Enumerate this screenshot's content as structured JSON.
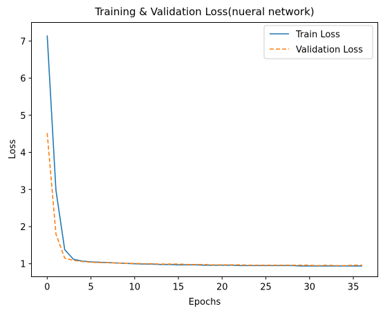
{
  "chart_data": {
    "type": "line",
    "title": "Training & Validation Loss(nueral network)",
    "xlabel": "Epochs",
    "ylabel": "Loss",
    "xlim": [
      -1.8,
      37.8
    ],
    "ylim": [
      0.65,
      7.5
    ],
    "xticks": [
      0,
      5,
      10,
      15,
      20,
      25,
      30,
      35
    ],
    "yticks": [
      1,
      2,
      3,
      4,
      5,
      6,
      7
    ],
    "grid": false,
    "legend_position": "top-right",
    "x": [
      0,
      1,
      2,
      3,
      4,
      5,
      6,
      7,
      8,
      9,
      10,
      11,
      12,
      13,
      14,
      15,
      16,
      17,
      18,
      19,
      20,
      21,
      22,
      23,
      24,
      25,
      26,
      27,
      28,
      29,
      30,
      31,
      32,
      33,
      34,
      35,
      36
    ],
    "series": [
      {
        "name": "Train Loss",
        "color": "#1f77b4",
        "dash": "solid",
        "values": [
          7.15,
          2.98,
          1.38,
          1.12,
          1.07,
          1.05,
          1.04,
          1.03,
          1.02,
          1.01,
          1.0,
          0.99,
          0.99,
          0.98,
          0.98,
          0.97,
          0.97,
          0.97,
          0.96,
          0.96,
          0.96,
          0.96,
          0.95,
          0.95,
          0.95,
          0.95,
          0.95,
          0.95,
          0.95,
          0.94,
          0.94,
          0.94,
          0.94,
          0.94,
          0.94,
          0.94,
          0.94
        ]
      },
      {
        "name": "Validation Loss",
        "color": "#ff7f0e",
        "dash": "dashed",
        "values": [
          4.52,
          1.8,
          1.15,
          1.09,
          1.06,
          1.04,
          1.03,
          1.03,
          1.02,
          1.01,
          1.01,
          1.0,
          1.0,
          0.99,
          0.99,
          0.99,
          0.98,
          0.98,
          0.98,
          0.97,
          0.97,
          0.97,
          0.97,
          0.96,
          0.96,
          0.96,
          0.96,
          0.96,
          0.96,
          0.96,
          0.96,
          0.95,
          0.96,
          0.95,
          0.95,
          0.96,
          0.96
        ]
      }
    ]
  }
}
